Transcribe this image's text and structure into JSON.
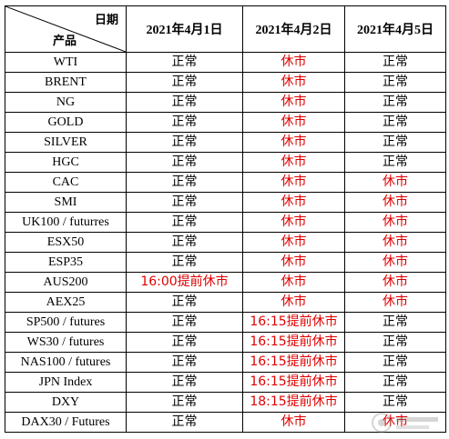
{
  "header": {
    "corner_top": "日期",
    "corner_bottom": "产品",
    "dates": [
      "2021年4月1日",
      "2021年4月2日",
      "2021年4月5日"
    ]
  },
  "colors": {
    "normal": "#000000",
    "closed": "#e00000"
  },
  "rows": [
    {
      "product": "WTI",
      "cells": [
        {
          "text": "正常",
          "status": "normal"
        },
        {
          "text": "休市",
          "status": "closed"
        },
        {
          "text": "正常",
          "status": "normal"
        }
      ]
    },
    {
      "product": "BRENT",
      "cells": [
        {
          "text": "正常",
          "status": "normal"
        },
        {
          "text": "休市",
          "status": "closed"
        },
        {
          "text": "正常",
          "status": "normal"
        }
      ]
    },
    {
      "product": "NG",
      "cells": [
        {
          "text": "正常",
          "status": "normal"
        },
        {
          "text": "休市",
          "status": "closed"
        },
        {
          "text": "正常",
          "status": "normal"
        }
      ]
    },
    {
      "product": "GOLD",
      "cells": [
        {
          "text": "正常",
          "status": "normal"
        },
        {
          "text": "休市",
          "status": "closed"
        },
        {
          "text": "正常",
          "status": "normal"
        }
      ]
    },
    {
      "product": "SILVER",
      "cells": [
        {
          "text": "正常",
          "status": "normal"
        },
        {
          "text": "休市",
          "status": "closed"
        },
        {
          "text": "正常",
          "status": "normal"
        }
      ]
    },
    {
      "product": "HGC",
      "cells": [
        {
          "text": "正常",
          "status": "normal"
        },
        {
          "text": "休市",
          "status": "closed"
        },
        {
          "text": "正常",
          "status": "normal"
        }
      ]
    },
    {
      "product": "CAC",
      "cells": [
        {
          "text": "正常",
          "status": "normal"
        },
        {
          "text": "休市",
          "status": "closed"
        },
        {
          "text": "休市",
          "status": "closed"
        }
      ]
    },
    {
      "product": "SMI",
      "cells": [
        {
          "text": "正常",
          "status": "normal"
        },
        {
          "text": "休市",
          "status": "closed"
        },
        {
          "text": "休市",
          "status": "closed"
        }
      ]
    },
    {
      "product": "UK100 / futurres",
      "cells": [
        {
          "text": "正常",
          "status": "normal"
        },
        {
          "text": "休市",
          "status": "closed"
        },
        {
          "text": "休市",
          "status": "closed"
        }
      ]
    },
    {
      "product": "ESX50",
      "cells": [
        {
          "text": "正常",
          "status": "normal"
        },
        {
          "text": "休市",
          "status": "closed"
        },
        {
          "text": "休市",
          "status": "closed"
        }
      ]
    },
    {
      "product": "ESP35",
      "cells": [
        {
          "text": "正常",
          "status": "normal"
        },
        {
          "text": "休市",
          "status": "closed"
        },
        {
          "text": "休市",
          "status": "closed"
        }
      ]
    },
    {
      "product": "AUS200",
      "cells": [
        {
          "text": "16:00提前休市",
          "status": "closed"
        },
        {
          "text": "休市",
          "status": "closed"
        },
        {
          "text": "休市",
          "status": "closed"
        }
      ]
    },
    {
      "product": "AEX25",
      "cells": [
        {
          "text": "正常",
          "status": "normal"
        },
        {
          "text": "休市",
          "status": "closed"
        },
        {
          "text": "休市",
          "status": "closed"
        }
      ]
    },
    {
      "product": "SP500 / futures",
      "cells": [
        {
          "text": "正常",
          "status": "normal"
        },
        {
          "text": "16:15提前休市",
          "status": "closed"
        },
        {
          "text": "正常",
          "status": "normal"
        }
      ]
    },
    {
      "product": "WS30 / futures",
      "cells": [
        {
          "text": "正常",
          "status": "normal"
        },
        {
          "text": "16:15提前休市",
          "status": "closed"
        },
        {
          "text": "正常",
          "status": "normal"
        }
      ]
    },
    {
      "product": "NAS100 / futures",
      "cells": [
        {
          "text": "正常",
          "status": "normal"
        },
        {
          "text": "16:15提前休市",
          "status": "closed"
        },
        {
          "text": "正常",
          "status": "normal"
        }
      ]
    },
    {
      "product": "JPN Index",
      "cells": [
        {
          "text": "正常",
          "status": "normal"
        },
        {
          "text": "16:15提前休市",
          "status": "closed"
        },
        {
          "text": "正常",
          "status": "normal"
        }
      ]
    },
    {
      "product": "DXY",
      "cells": [
        {
          "text": "正常",
          "status": "normal"
        },
        {
          "text": "18:15提前休市",
          "status": "closed"
        },
        {
          "text": "正常",
          "status": "normal"
        }
      ]
    },
    {
      "product": "DAX30 / Futures",
      "cells": [
        {
          "text": "正常",
          "status": "normal"
        },
        {
          "text": "休市",
          "status": "closed"
        },
        {
          "text": "休市",
          "status": "closed"
        }
      ]
    }
  ]
}
